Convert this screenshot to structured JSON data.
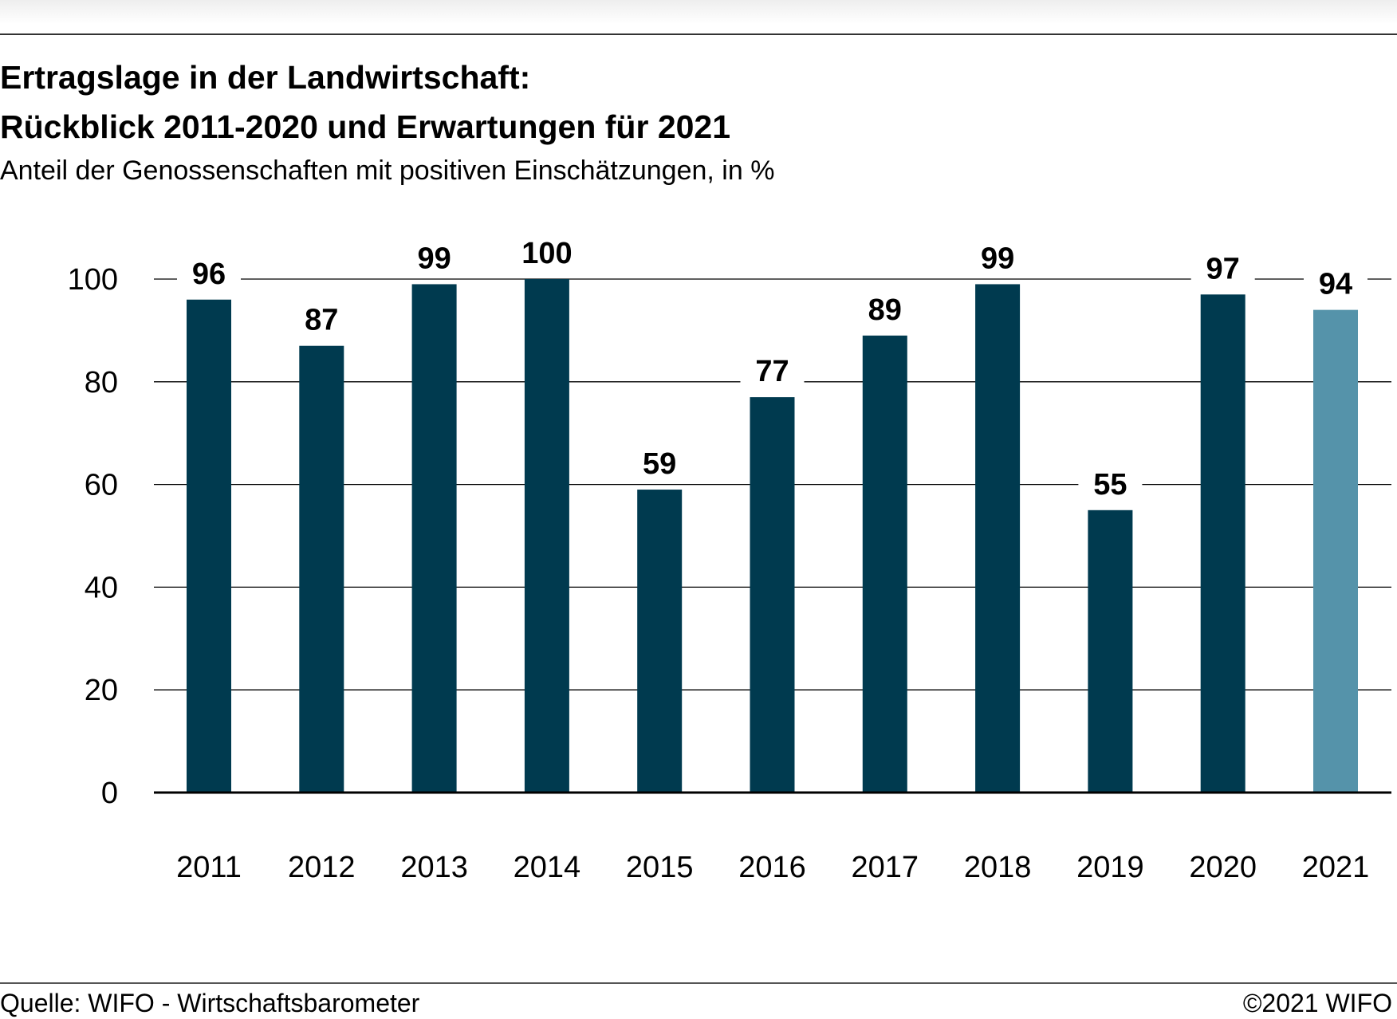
{
  "title_line1": "Ertragslage in der Landwirtschaft:",
  "title_line2": "Rückblick 2011-2020 und Erwartungen für 2021",
  "subtitle": "Anteil der Genossenschaften mit positiven Einschätzungen, in %",
  "source": "Quelle: WIFO - Wirtschaftsbarometer",
  "copyright": "©2021 WIFO",
  "colors": {
    "bar": "#003a4f",
    "bar_highlight": "#5593aa"
  },
  "chart_data": {
    "type": "bar",
    "categories": [
      "2011",
      "2012",
      "2013",
      "2014",
      "2015",
      "2016",
      "2017",
      "2018",
      "2019",
      "2020",
      "2021"
    ],
    "values": [
      96,
      87,
      99,
      100,
      59,
      77,
      89,
      99,
      55,
      97,
      94
    ],
    "highlighted_category": "2021",
    "ylim": [
      0,
      100
    ],
    "yticks": [
      0,
      20,
      40,
      60,
      80,
      100
    ],
    "grid": true,
    "legend": false,
    "data_labels": true
  }
}
